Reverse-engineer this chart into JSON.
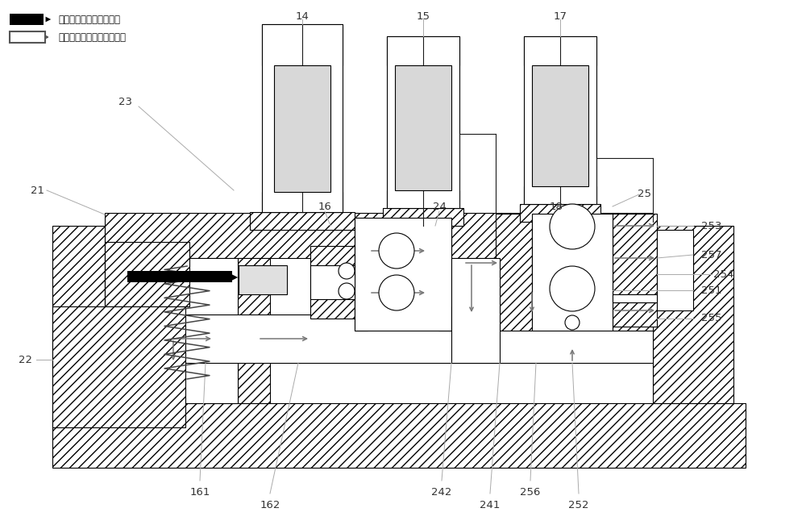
{
  "bg_color": "#ffffff",
  "line_color": "#1a1a1a",
  "hatch_color": "#555555",
  "label_color": "#333333",
  "fig_width": 10.0,
  "fig_height": 6.56,
  "legend_solid": "实心前头表示有燃气通过",
  "legend_hollow": "空心前头表示没有燃气通过",
  "hatch_density": "///",
  "lw": 0.8,
  "lw_thick": 1.2,
  "label_fs": 9.5
}
